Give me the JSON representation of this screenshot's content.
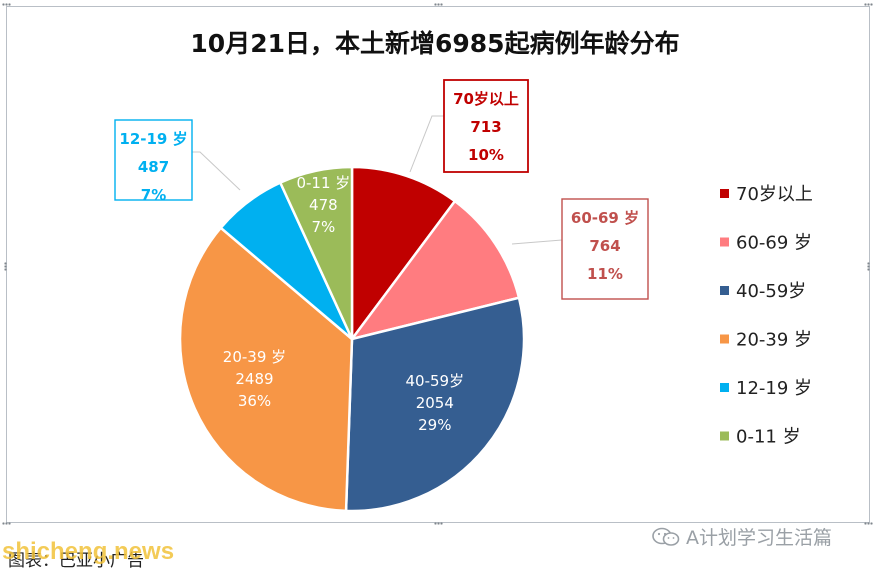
{
  "chart_data": {
    "type": "pie",
    "title": "10月21日，本土新增6985起病例年龄分布",
    "start_angle_deg": 0,
    "direction": "clockwise",
    "slices": [
      {
        "name": "70岁以上",
        "label_name": "70岁以上",
        "value": 713,
        "percent": "10%",
        "color": "#c00000",
        "label_style": "callout",
        "callout_color": "#c00000"
      },
      {
        "name": "60-69 岁",
        "label_name": "60-69 岁",
        "value": 764,
        "percent": "11%",
        "color": "#ff7c80",
        "label_style": "callout",
        "callout_color": "#c0504d"
      },
      {
        "name": "40-59岁",
        "label_name": "40-59岁",
        "value": 2054,
        "percent": "29%",
        "color": "#355e91",
        "label_style": "inside"
      },
      {
        "name": "20-39 岁",
        "label_name": "20-39 岁",
        "value": 2489,
        "percent": "36%",
        "color": "#f79646",
        "label_style": "inside"
      },
      {
        "name": "12-19 岁",
        "label_name": "12-19 岁",
        "value": 487,
        "percent": "7%",
        "color": "#00b0f0",
        "label_style": "callout",
        "callout_color": "#00b0f0"
      },
      {
        "name": "0-11 岁",
        "label_name": "0-11 岁",
        "value": 478,
        "percent": "7%",
        "color": "#9bbb59",
        "label_style": "inside"
      }
    ],
    "legend": {
      "placement": "right",
      "entries": [
        "70岁以上",
        "60-69 岁",
        "40-59岁",
        "20-39 岁",
        "12-19 岁",
        "0-11 岁"
      ]
    }
  },
  "caption": "图表：巴亚小广告",
  "watermarks": {
    "site": "shicheng.news",
    "account": "A计划学习生活篇",
    "account_icon": "wechat-icon"
  }
}
